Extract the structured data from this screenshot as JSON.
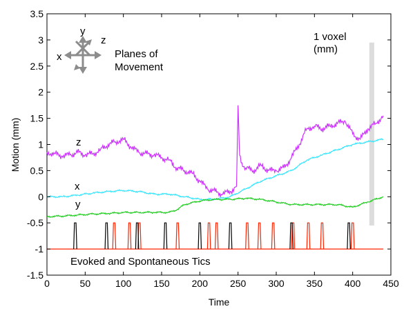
{
  "chart_data": {
    "type": "line",
    "title": "",
    "xlabel": "Time",
    "ylabel": "Motion (mm)",
    "xlim": [
      0,
      450
    ],
    "ylim": [
      -1.5,
      3.5
    ],
    "xticks": [
      0,
      50,
      100,
      150,
      200,
      250,
      300,
      350,
      400,
      450
    ],
    "yticks": [
      -1.5,
      -1,
      -0.5,
      0,
      0.5,
      1,
      1.5,
      2,
      2.5,
      3,
      3.5
    ],
    "xtick_labels": [
      "0",
      "50",
      "100",
      "150",
      "200",
      "250",
      "300",
      "350",
      "400",
      "450"
    ],
    "ytick_labels": [
      "-1.5",
      "-1",
      "-0.5",
      "0",
      "0.5",
      "1",
      "1.5",
      "2",
      "2.5",
      "3",
      "3.5"
    ],
    "grid": false,
    "series": [
      {
        "label": "z",
        "color": "#cc33ff",
        "x": [
          0,
          10,
          20,
          30,
          40,
          50,
          60,
          70,
          80,
          90,
          100,
          110,
          120,
          130,
          140,
          150,
          160,
          170,
          180,
          190,
          200,
          210,
          220,
          230,
          240,
          248,
          250,
          252,
          255,
          260,
          270,
          280,
          290,
          300,
          310,
          320,
          330,
          340,
          350,
          360,
          370,
          380,
          390,
          400,
          410,
          420,
          430,
          440
        ],
        "y": [
          0.85,
          0.82,
          0.78,
          0.8,
          0.85,
          0.8,
          0.82,
          0.9,
          1.0,
          1.05,
          1.1,
          0.95,
          0.85,
          0.82,
          0.8,
          0.75,
          0.7,
          0.55,
          0.5,
          0.45,
          0.3,
          0.15,
          0.1,
          0.05,
          0.1,
          0.2,
          1.75,
          0.8,
          0.65,
          0.55,
          0.5,
          0.6,
          0.5,
          0.5,
          0.55,
          0.75,
          1.0,
          1.3,
          1.35,
          1.3,
          1.35,
          1.4,
          1.45,
          1.2,
          1.1,
          1.3,
          1.4,
          1.55
        ]
      },
      {
        "label": "x",
        "color": "#33e5ff",
        "x": [
          0,
          20,
          40,
          60,
          80,
          100,
          120,
          140,
          160,
          180,
          200,
          220,
          240,
          260,
          280,
          300,
          320,
          340,
          360,
          380,
          400,
          420,
          440
        ],
        "y": [
          0.0,
          0.0,
          0.03,
          0.07,
          0.1,
          0.12,
          0.1,
          0.05,
          0.05,
          0.0,
          -0.05,
          -0.05,
          0.0,
          0.15,
          0.3,
          0.4,
          0.5,
          0.7,
          0.8,
          0.9,
          1.0,
          1.05,
          1.1
        ]
      },
      {
        "label": "y",
        "color": "#1fcc1f",
        "x": [
          0,
          20,
          40,
          60,
          80,
          100,
          120,
          140,
          160,
          170,
          180,
          200,
          220,
          240,
          260,
          280,
          300,
          320,
          340,
          360,
          380,
          400,
          420,
          440
        ],
        "y": [
          -0.38,
          -0.37,
          -0.35,
          -0.33,
          -0.32,
          -0.3,
          -0.3,
          -0.3,
          -0.3,
          -0.25,
          -0.15,
          -0.08,
          -0.05,
          -0.05,
          -0.03,
          -0.05,
          -0.1,
          -0.15,
          -0.15,
          -0.15,
          -0.15,
          -0.2,
          -0.1,
          0.0
        ]
      }
    ],
    "tics": {
      "baseline": -1,
      "peak": -0.5,
      "width": 2,
      "baseline_color": "#ff2200",
      "x_range": [
        0,
        440
      ],
      "evoked": {
        "color": "#000000",
        "times": [
          37,
          78,
          118,
          155,
          200,
          240,
          320,
          395
        ]
      },
      "spontaneous": {
        "color": "#ff2200",
        "times": [
          88,
          108,
          121,
          171,
          212,
          222,
          262,
          278,
          296,
          322,
          342,
          360,
          400
        ]
      }
    },
    "voxel_bar": {
      "x": 425,
      "y_range": [
        -0.55,
        2.95
      ],
      "color": "#dcdcdc",
      "label_lines": [
        "1 voxel",
        "(mm)"
      ]
    },
    "annotations": {
      "planes_lines": [
        "Planes of",
        "Movement"
      ],
      "axis_letters": {
        "x": "x",
        "y": "y",
        "z": "z"
      },
      "tics_caption": "Evoked and Spontaneous Tics"
    }
  }
}
